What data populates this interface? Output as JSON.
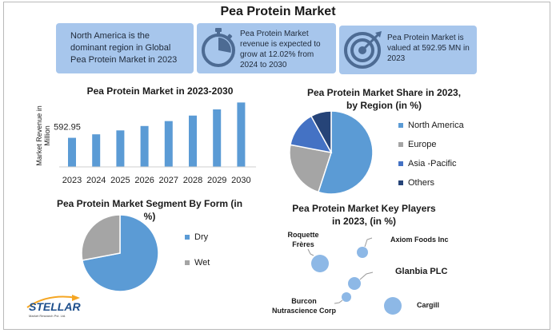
{
  "title": "Pea Protein Market",
  "cards": {
    "region": {
      "text": "North America is the dominant region in Global Pea Protein Market in 2023"
    },
    "growth": {
      "text": "Pea Protein Market revenue is expected to grow at 12.02% from 2024 to 2030",
      "icon": "stopwatch-icon"
    },
    "value": {
      "text": "Pea Protein Market is valued at 592.95 MN in 2023",
      "icon": "target-icon"
    }
  },
  "colors": {
    "card": "#a7c6ec",
    "bar": "#5b9bd5",
    "north_america": "#5b9bd5",
    "europe": "#a5a5a5",
    "asia_pacific": "#4472c4",
    "others": "#264478",
    "bubble": "#8db8e6"
  },
  "chart_data": [
    {
      "type": "bar",
      "title": "Pea Protein Market in 2023-2030",
      "ylabel": "Market Revenue in Million",
      "categories": [
        "2023",
        "2024",
        "2025",
        "2026",
        "2027",
        "2028",
        "2029",
        "2030"
      ],
      "values": [
        592.95,
        664.26,
        744.14,
        833.63,
        933.89,
        1046.2,
        1172.02,
        1312.98
      ],
      "data_labels": [
        "592.95",
        "",
        "",
        "",
        "",
        "",
        "",
        ""
      ],
      "ylim": [
        0,
        1400
      ]
    },
    {
      "type": "pie",
      "title": "Pea Protein Market Share in 2023, by Region (in %)",
      "labels": [
        "North America",
        "Europe",
        "Asia -Pacific",
        "Others"
      ],
      "values": [
        55,
        23,
        14,
        8
      ],
      "legend": "right"
    },
    {
      "type": "pie",
      "title": "Pea Protein Market Segment By Form (in %)",
      "labels": [
        "Dry",
        "Wet"
      ],
      "values": [
        72,
        28
      ],
      "legend": "right"
    },
    {
      "type": "scatter",
      "title": "Pea Protein Market Key Players in 2023, (in %)",
      "labels": [
        "Roquette Frères",
        "Axiom Foods Inc",
        "Glanbia PLC",
        "Burcon Nutrascience Corp",
        "Cargill"
      ]
    }
  ],
  "logo": {
    "name": "STELLAR",
    "tagline": "Market Research Pvt. Ltd."
  }
}
